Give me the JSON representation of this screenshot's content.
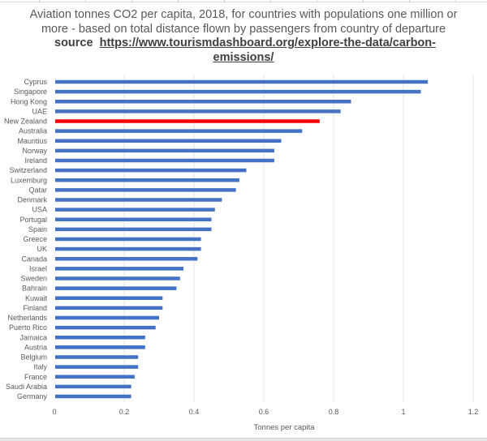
{
  "chart_data": {
    "type": "bar",
    "orientation": "horizontal",
    "title": "Aviation tonnes CO2 per capita, 2018, for countries with populations one million or more - based on total distance flown by passengers from country of departure",
    "source_label": "source",
    "source_url": "https://www.tourismdashboard.org/explore-the-data/carbon-emissions/",
    "xlabel": "Tonnes per capita",
    "ylabel": "",
    "xlim": [
      0,
      1.2
    ],
    "xticks": [
      "0",
      "0.2",
      "0.4",
      "0.6",
      "0.8",
      "1",
      "1.2"
    ],
    "xtick_values": [
      0,
      0.2,
      0.4,
      0.6,
      0.8,
      1.0,
      1.2
    ],
    "grid": "vertical",
    "legend": "none",
    "colors": {
      "default": "#4472C4",
      "highlight": "#FF0000"
    },
    "highlight": "New Zealand",
    "categories": [
      "Cyprus",
      "Singapore",
      "Hong Kong",
      "UAE",
      "New Zealand",
      "Australia",
      "Mauritius",
      "Norway",
      "Ireland",
      "Switzerland",
      "Luxemburg",
      "Qatar",
      "Denmark",
      "USA",
      "Portugal",
      "Spain",
      "Greece",
      "UK",
      "Canada",
      "Israel",
      "Sweden",
      "Bahrain",
      "Kuwait",
      "Finland",
      "Netherlands",
      "Puerto Rico",
      "Jamaica",
      "Austria",
      "Belgium",
      "Italy",
      "France",
      "Saudi Arabia",
      "Germany"
    ],
    "values": [
      1.07,
      1.05,
      0.85,
      0.82,
      0.76,
      0.71,
      0.65,
      0.63,
      0.63,
      0.55,
      0.53,
      0.52,
      0.48,
      0.46,
      0.45,
      0.45,
      0.42,
      0.42,
      0.41,
      0.37,
      0.36,
      0.35,
      0.31,
      0.31,
      0.3,
      0.29,
      0.26,
      0.26,
      0.24,
      0.24,
      0.23,
      0.22,
      0.22
    ]
  }
}
